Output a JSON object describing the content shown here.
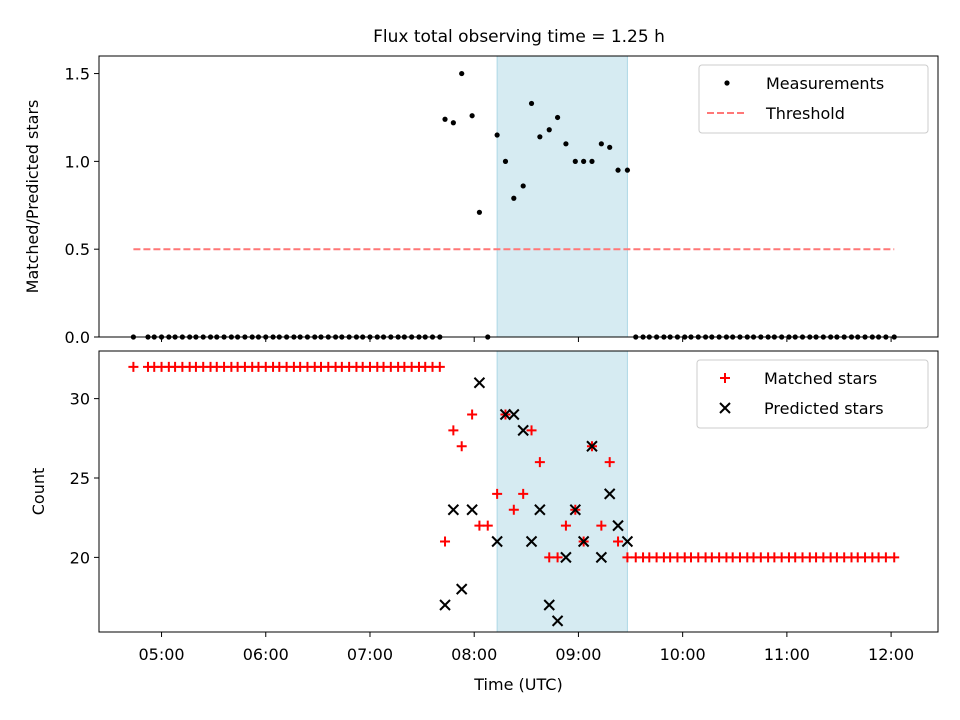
{
  "chart_data": [
    {
      "type": "scatter",
      "title": "Flux total observing time = 1.25 h",
      "ylabel": "Matched/Predicted stars",
      "xlim": [
        4.4,
        12.45
      ],
      "ylim": [
        0,
        1.6
      ],
      "yticks": [
        0.0,
        0.5,
        1.0,
        1.5
      ],
      "ytick_labels": [
        "0.0",
        "0.5",
        "1.0",
        "1.5"
      ],
      "highlight_span": [
        8.22,
        9.47
      ],
      "threshold": {
        "value": 0.5,
        "x_start": 4.73,
        "x_end": 12.03,
        "color": "#ff7777"
      },
      "legend": {
        "position": "top-right",
        "entries": [
          "Measurements",
          "Threshold"
        ]
      },
      "series": [
        {
          "name": "Measurements",
          "color": "#000000",
          "x": [
            4.73,
            4.87,
            4.93,
            5.0,
            5.07,
            5.13,
            5.2,
            5.27,
            5.33,
            5.4,
            5.47,
            5.53,
            5.6,
            5.67,
            5.73,
            5.8,
            5.87,
            5.93,
            6.0,
            6.07,
            6.13,
            6.2,
            6.27,
            6.33,
            6.4,
            6.47,
            6.53,
            6.6,
            6.67,
            6.73,
            6.8,
            6.87,
            6.93,
            7.0,
            7.07,
            7.13,
            7.2,
            7.27,
            7.33,
            7.4,
            7.47,
            7.53,
            7.6,
            7.67,
            7.72,
            7.8,
            7.88,
            7.98,
            8.05,
            8.13,
            8.22,
            8.3,
            8.38,
            8.47,
            8.55,
            8.63,
            8.72,
            8.8,
            8.88,
            8.97,
            9.05,
            9.13,
            9.22,
            9.3,
            9.38,
            9.47,
            9.55,
            9.62,
            9.68,
            9.75,
            9.82,
            9.88,
            9.95,
            10.02,
            10.08,
            10.15,
            10.22,
            10.28,
            10.35,
            10.42,
            10.48,
            10.55,
            10.62,
            10.68,
            10.75,
            10.82,
            10.88,
            10.95,
            11.02,
            11.08,
            11.15,
            11.22,
            11.28,
            11.35,
            11.42,
            11.48,
            11.55,
            11.62,
            11.68,
            11.75,
            11.82,
            11.88,
            11.95,
            12.03
          ],
          "y": [
            0,
            0,
            0,
            0,
            0,
            0,
            0,
            0,
            0,
            0,
            0,
            0,
            0,
            0,
            0,
            0,
            0,
            0,
            0,
            0,
            0,
            0,
            0,
            0,
            0,
            0,
            0,
            0,
            0,
            0,
            0,
            0,
            0,
            0,
            0,
            0,
            0,
            0,
            0,
            0,
            0,
            0,
            0,
            0,
            1.24,
            1.22,
            1.5,
            1.26,
            0.71,
            0,
            1.15,
            1.0,
            0.79,
            0.86,
            1.33,
            1.14,
            1.18,
            1.25,
            1.1,
            1.0,
            1.0,
            1.0,
            1.1,
            1.08,
            0.95,
            0.95,
            0,
            0,
            0,
            0,
            0,
            0,
            0,
            0,
            0,
            0,
            0,
            0,
            0,
            0,
            0,
            0,
            0,
            0,
            0,
            0,
            0,
            0,
            0,
            0,
            0,
            0,
            0,
            0,
            0,
            0,
            0,
            0,
            0,
            0,
            0,
            0,
            0,
            0
          ]
        }
      ]
    },
    {
      "type": "scatter",
      "xlabel": "Time (UTC)",
      "ylabel": "Count",
      "xlim": [
        4.4,
        12.45
      ],
      "ylim": [
        15.3,
        33.0
      ],
      "yticks": [
        20,
        25,
        30
      ],
      "ytick_labels": [
        "20",
        "25",
        "30"
      ],
      "xticks": [
        5,
        6,
        7,
        8,
        9,
        10,
        11,
        12
      ],
      "xtick_labels": [
        "05:00",
        "06:00",
        "07:00",
        "08:00",
        "09:00",
        "10:00",
        "11:00",
        "12:00"
      ],
      "highlight_span": [
        8.22,
        9.47
      ],
      "legend": {
        "position": "top-right",
        "entries": [
          "Matched stars",
          "Predicted stars"
        ]
      },
      "series": [
        {
          "name": "Matched stars",
          "marker": "plus",
          "color": "#ff0000",
          "x": [
            4.73,
            4.87,
            4.93,
            5.0,
            5.07,
            5.13,
            5.2,
            5.27,
            5.33,
            5.4,
            5.47,
            5.53,
            5.6,
            5.67,
            5.73,
            5.8,
            5.87,
            5.93,
            6.0,
            6.07,
            6.13,
            6.2,
            6.27,
            6.33,
            6.4,
            6.47,
            6.53,
            6.6,
            6.67,
            6.73,
            6.8,
            6.87,
            6.93,
            7.0,
            7.07,
            7.13,
            7.2,
            7.27,
            7.33,
            7.4,
            7.47,
            7.53,
            7.6,
            7.67,
            7.72,
            7.8,
            7.88,
            7.98,
            8.05,
            8.13,
            8.22,
            8.3,
            8.38,
            8.47,
            8.55,
            8.63,
            8.72,
            8.8,
            8.88,
            8.97,
            9.05,
            9.13,
            9.22,
            9.3,
            9.38,
            9.47,
            9.55,
            9.62,
            9.68,
            9.75,
            9.82,
            9.88,
            9.95,
            10.02,
            10.08,
            10.15,
            10.22,
            10.28,
            10.35,
            10.42,
            10.48,
            10.55,
            10.62,
            10.68,
            10.75,
            10.82,
            10.88,
            10.95,
            11.02,
            11.08,
            11.15,
            11.22,
            11.28,
            11.35,
            11.42,
            11.48,
            11.55,
            11.62,
            11.68,
            11.75,
            11.82,
            11.88,
            11.95,
            12.03
          ],
          "y": [
            32,
            32,
            32,
            32,
            32,
            32,
            32,
            32,
            32,
            32,
            32,
            32,
            32,
            32,
            32,
            32,
            32,
            32,
            32,
            32,
            32,
            32,
            32,
            32,
            32,
            32,
            32,
            32,
            32,
            32,
            32,
            32,
            32,
            32,
            32,
            32,
            32,
            32,
            32,
            32,
            32,
            32,
            32,
            32,
            21,
            28,
            27,
            29,
            22,
            22,
            24,
            29,
            23,
            24,
            28,
            26,
            20,
            20,
            22,
            23,
            21,
            27,
            22,
            26,
            21,
            20,
            20,
            20,
            20,
            20,
            20,
            20,
            20,
            20,
            20,
            20,
            20,
            20,
            20,
            20,
            20,
            20,
            20,
            20,
            20,
            20,
            20,
            20,
            20,
            20,
            20,
            20,
            20,
            20,
            20,
            20,
            20,
            20,
            20,
            20,
            20,
            20,
            20,
            20
          ]
        },
        {
          "name": "Predicted stars",
          "marker": "x",
          "color": "#000000",
          "x": [
            7.72,
            7.8,
            7.88,
            7.98,
            8.05,
            8.22,
            8.3,
            8.38,
            8.47,
            8.55,
            8.63,
            8.72,
            8.8,
            8.88,
            8.97,
            9.05,
            9.13,
            9.22,
            9.3,
            9.38,
            9.47
          ],
          "y": [
            17,
            23,
            18,
            23,
            31,
            21,
            29,
            29,
            28,
            21,
            23,
            17,
            16,
            20,
            23,
            21,
            27,
            20,
            24,
            22,
            21
          ]
        }
      ]
    }
  ]
}
